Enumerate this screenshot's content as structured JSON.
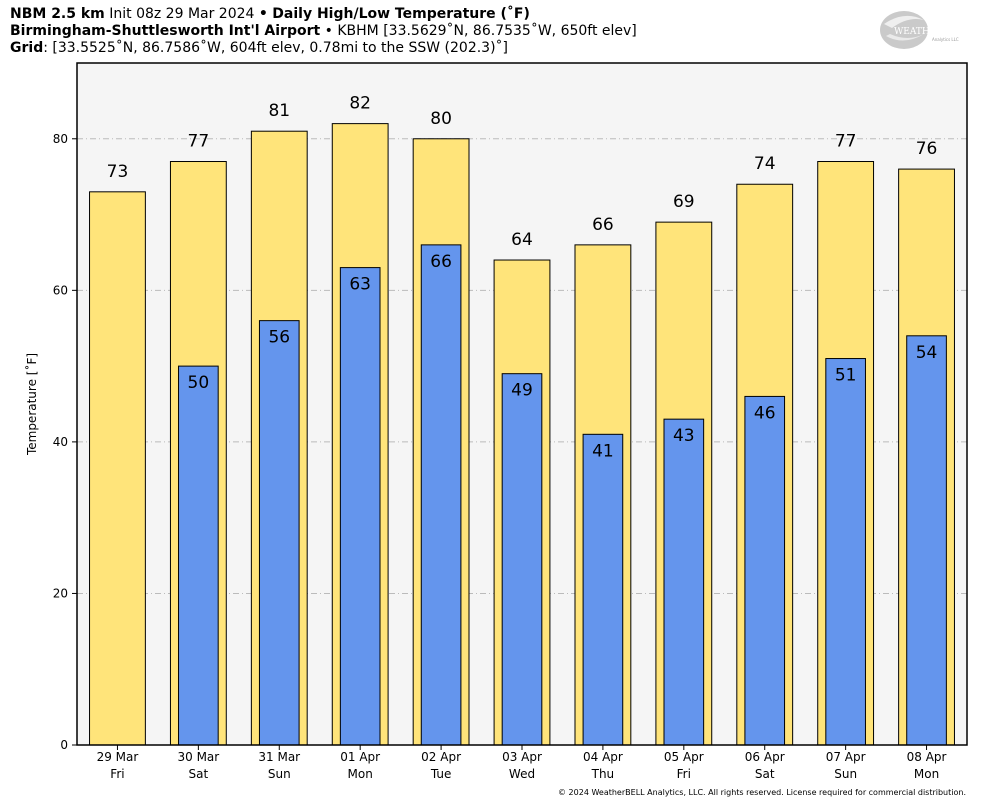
{
  "header": {
    "model": "NBM 2.5 km",
    "init": "Init 08z 29 Mar 2024",
    "separator": "•",
    "product": "Daily High/Low Temperature (˚F)",
    "station_name": "Birmingham-Shuttlesworth Int'l Airport",
    "station_info": "KBHM [33.5629˚N, 86.7535˚W, 650ft elev]",
    "grid_label": "Grid",
    "grid_info": ": [33.5525˚N, 86.7586˚W, 604ft elev, 0.78mi to the SSW (202.3)˚]"
  },
  "logo": {
    "text_main": "WEATHER",
    "text_bold": "BELL",
    "text_sub": "Analytics LLC"
  },
  "copyright": "© 2024 WeatherBELL Analytics, LLC. All rights reserved. License required for commercial distribution.",
  "chart_data": {
    "type": "bar",
    "ylabel": "Temperature [˚F]",
    "ylim": [
      0,
      90
    ],
    "yticks": [
      0,
      20,
      40,
      60,
      80
    ],
    "grid": true,
    "categories": [
      "29 Mar",
      "30 Mar",
      "31 Mar",
      "01 Apr",
      "02 Apr",
      "03 Apr",
      "04 Apr",
      "05 Apr",
      "06 Apr",
      "07 Apr",
      "08 Apr"
    ],
    "category_days": [
      "Fri",
      "Sat",
      "Sun",
      "Mon",
      "Tue",
      "Wed",
      "Thu",
      "Fri",
      "Sat",
      "Sun",
      "Mon"
    ],
    "series": [
      {
        "key": "high",
        "color": "#FFE47A",
        "values": [
          73,
          77,
          81,
          82,
          80,
          64,
          66,
          69,
          74,
          77,
          76
        ]
      },
      {
        "key": "low",
        "color": "#6495ED",
        "values": [
          null,
          50,
          56,
          63,
          66,
          49,
          41,
          43,
          46,
          51,
          54
        ]
      }
    ]
  }
}
